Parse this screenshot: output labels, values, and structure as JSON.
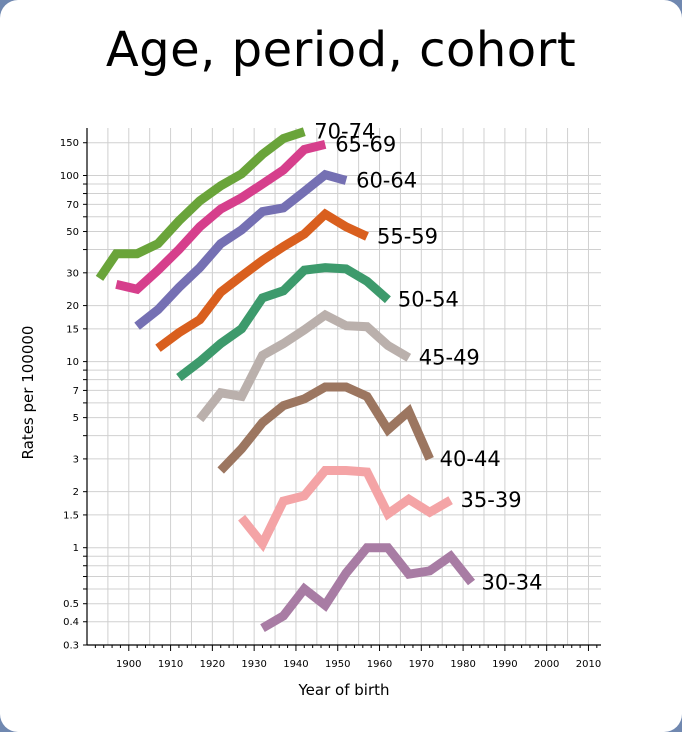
{
  "chart_data": {
    "type": "line",
    "title": "Age, period, cohort",
    "xlabel": "Year of birth",
    "ylabel": "Rates per 100000",
    "y_scale": "log",
    "xlim": [
      1890,
      2013
    ],
    "ylim": [
      0.3,
      180
    ],
    "grid": true,
    "legend": "inline labels at series ends",
    "x_ticks": [
      "1900",
      "1910",
      "1920",
      "1930",
      "1940",
      "1950",
      "1960",
      "1970",
      "1980",
      "1990",
      "2000",
      "2010"
    ],
    "y_ticks": [
      "0.3",
      "0.4",
      "0.5",
      "1",
      "1.5",
      "2",
      "3",
      "5",
      "7",
      "10",
      "15",
      "20",
      "30",
      "50",
      "70",
      "100",
      "150"
    ],
    "series": [
      {
        "name": "70-74",
        "color": "#6aa43a",
        "x": [
          1893,
          1897,
          1902,
          1907,
          1912,
          1917,
          1922,
          1927,
          1932,
          1937,
          1942
        ],
        "y": [
          28,
          38,
          38,
          43,
          57,
          73,
          88,
          102,
          130,
          158,
          172
        ]
      },
      {
        "name": "65-69",
        "color": "#d63f8c",
        "x": [
          1897,
          1902,
          1907,
          1912,
          1917,
          1922,
          1927,
          1932,
          1937,
          1942,
          1947
        ],
        "y": [
          26,
          24.5,
          31,
          40,
          53,
          66,
          76,
          90,
          107,
          138,
          147
        ]
      },
      {
        "name": "60-64",
        "color": "#7570b3",
        "x": [
          1902,
          1907,
          1912,
          1917,
          1922,
          1927,
          1932,
          1937,
          1942,
          1947,
          1952
        ],
        "y": [
          15.5,
          19,
          25,
          32,
          43,
          51,
          64,
          67,
          82,
          101,
          94
        ]
      },
      {
        "name": "55-59",
        "color": "#d95f1e",
        "x": [
          1907,
          1912,
          1917,
          1922,
          1927,
          1932,
          1937,
          1942,
          1947,
          1952,
          1957
        ],
        "y": [
          11.8,
          14.3,
          16.8,
          23.6,
          28.8,
          35,
          41.5,
          48.5,
          62,
          53,
          47
        ]
      },
      {
        "name": "50-54",
        "color": "#3d9a6c",
        "x": [
          1912,
          1917,
          1922,
          1927,
          1932,
          1937,
          1942,
          1947,
          1952,
          1957,
          1962
        ],
        "y": [
          8.2,
          10,
          12.5,
          15,
          22,
          24,
          31,
          32,
          31.5,
          27,
          21.5
        ]
      },
      {
        "name": "45-49",
        "color": "#bab0ac",
        "x": [
          1917,
          1922,
          1927,
          1932,
          1937,
          1942,
          1947,
          1952,
          1957,
          1962,
          1967
        ],
        "y": [
          4.9,
          6.8,
          6.5,
          10.8,
          12.5,
          14.8,
          17.8,
          15.6,
          15.4,
          12.2,
          10.5
        ]
      },
      {
        "name": "40-44",
        "color": "#9c7660",
        "x": [
          1922,
          1927,
          1932,
          1937,
          1942,
          1947,
          1952,
          1957,
          1962,
          1967,
          1972
        ],
        "y": [
          2.6,
          3.4,
          4.7,
          5.8,
          6.3,
          7.3,
          7.3,
          6.5,
          4.3,
          5.4,
          3
        ]
      },
      {
        "name": "35-39",
        "color": "#f4a4a6",
        "x": [
          1927,
          1932,
          1937,
          1942,
          1947,
          1952,
          1957,
          1962,
          1967,
          1972,
          1977
        ],
        "y": [
          1.45,
          1.05,
          1.78,
          1.9,
          2.6,
          2.6,
          2.55,
          1.52,
          1.82,
          1.55,
          1.8
        ]
      },
      {
        "name": "30-34",
        "color": "#a87ca4",
        "x": [
          1932,
          1937,
          1942,
          1947,
          1952,
          1957,
          1962,
          1967,
          1972,
          1977,
          1982
        ],
        "y": [
          0.37,
          0.43,
          0.6,
          0.49,
          0.73,
          1,
          1,
          0.72,
          0.75,
          0.9,
          0.65
        ]
      }
    ]
  }
}
